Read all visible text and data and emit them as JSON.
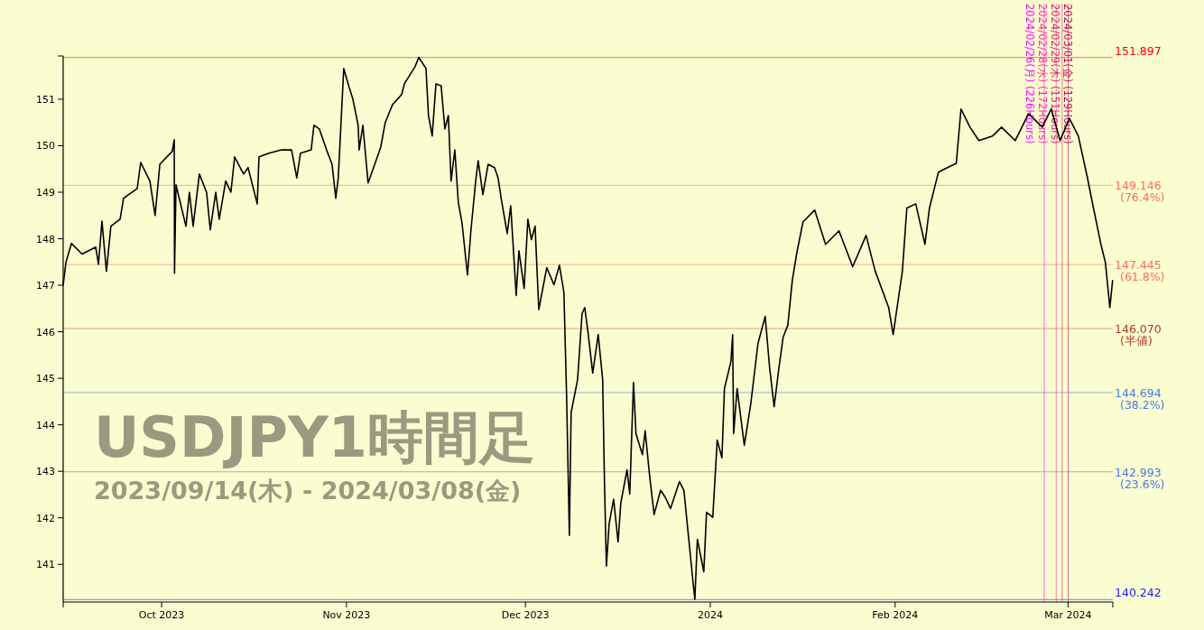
{
  "chart_data": {
    "type": "line",
    "title": "USDJPY1時間足",
    "subtitle": "2023/09/14(木) - 2024/03/08(金)",
    "xlim": [
      "2023-09-14T12:00",
      "2024-03-08T12:00"
    ],
    "xticks": [
      {
        "value": "2023-10-01",
        "label": "Oct 2023"
      },
      {
        "value": "2023-11-01",
        "label": "Nov 2023"
      },
      {
        "value": "2023-12-01",
        "label": "Dec 2023"
      },
      {
        "value": "2024-01-01",
        "label": "2024"
      },
      {
        "value": "2024-02-01",
        "label": "Feb 2024"
      },
      {
        "value": "2024-03-01",
        "label": "Mar 2024"
      }
    ],
    "ylim": [
      140.19,
      151.93
    ],
    "yticks": [
      141,
      142,
      143,
      144,
      145,
      146,
      147,
      148,
      149,
      150,
      151
    ],
    "series": [
      {
        "color": "#000000",
        "x": [
          "2023-09-14T12:00",
          "2023-09-14T23:00",
          "2023-09-15T21:00",
          "2023-09-17T16:00",
          "2023-09-19T23:00",
          "2023-09-20T10:00",
          "2023-09-21T00:00",
          "2023-09-21T18:00",
          "2023-09-22T12:00",
          "2023-09-24T01:00",
          "2023-09-24T15:00",
          "2023-09-26T22:00",
          "2023-09-27T12:00",
          "2023-09-29T01:00",
          "2023-09-29T22:00",
          "2023-09-30T17:00",
          "2023-10-02T19:00",
          "2023-10-03T03:00",
          "2023-10-03T04:00",
          "2023-10-03T10:00",
          "2023-10-05T02:00",
          "2023-10-05T16:00",
          "2023-10-06T07:00",
          "2023-10-07T08:00",
          "2023-10-08T13:00",
          "2023-10-09T04:00",
          "2023-10-10T02:00",
          "2023-10-10T16:00",
          "2023-10-11T18:00",
          "2023-10-12T15:00",
          "2023-10-13T06:00",
          "2023-10-14T18:00",
          "2023-10-15T12:00",
          "2023-10-17T01:00",
          "2023-10-17T08:00",
          "2023-10-19T00:00",
          "2023-10-21T03:00",
          "2023-10-22T19:00",
          "2023-10-23T16:00",
          "2023-10-24T07:00",
          "2023-10-26T02:00",
          "2023-10-26T13:00",
          "2023-10-27T11:00",
          "2023-10-28T16:00",
          "2023-10-29T14:00",
          "2023-10-30T05:00",
          "2023-10-30T15:00",
          "2023-10-31T13:00",
          "2023-11-01T11:00",
          "2023-11-02T01:00",
          "2023-11-02T23:00",
          "2023-11-03T03:00",
          "2023-11-03T18:00",
          "2023-11-04T15:00",
          "2023-11-05T13:00",
          "2023-11-06T18:00",
          "2023-11-07T12:00",
          "2023-11-08T17:00",
          "2023-11-10T06:00",
          "2023-11-10T17:00",
          "2023-11-12T12:00",
          "2023-11-13T03:00",
          "2023-11-14T08:00",
          "2023-11-14T18:00",
          "2023-11-15T09:00",
          "2023-11-16T00:00",
          "2023-11-16T21:00",
          "2023-11-17T12:00",
          "2023-11-18T02:00",
          "2023-11-18T13:00",
          "2023-11-19T04:00",
          "2023-11-19T18:00",
          "2023-11-20T09:00",
          "2023-11-21T07:00",
          "2023-11-21T21:00",
          "2023-11-22T16:00",
          "2023-11-23T02:00",
          "2023-11-23T21:00",
          "2023-11-24T18:00",
          "2023-11-25T20:00",
          "2023-11-26T10:00",
          "2023-11-27T01:00",
          "2023-11-27T23:00",
          "2023-11-28T13:00",
          "2023-11-29T11:00",
          "2023-11-29T22:00",
          "2023-11-30T19:00",
          "2023-12-01T10:00",
          "2023-12-02T00:00",
          "2023-12-02T15:00",
          "2023-12-03T06:00",
          "2023-12-04T14:00",
          "2023-12-05T19:00",
          "2023-12-06T17:00",
          "2023-12-07T11:00",
          "2023-12-07T22:00",
          "2023-12-08T09:00",
          "2023-12-08T16:00",
          "2023-12-09T18:00",
          "2023-12-10T12:00",
          "2023-12-10T23:00",
          "2023-12-11T13:00",
          "2023-12-12T07:00",
          "2023-12-13T05:00",
          "2023-12-13T23:00",
          "2023-12-14T06:00",
          "2023-12-14T14:00",
          "2023-12-15T01:00",
          "2023-12-15T19:00",
          "2023-12-16T13:00",
          "2023-12-17T00:00",
          "2023-12-18T01:00",
          "2023-12-18T12:00",
          "2023-12-19T03:00",
          "2023-12-19T13:00",
          "2023-12-20T15:00",
          "2023-12-21T02:00",
          "2023-12-21T20:00",
          "2023-12-22T14:00",
          "2023-12-23T16:00",
          "2023-12-24T10:00",
          "2023-12-25T08:00",
          "2023-12-26T20:00",
          "2023-12-27T14:00",
          "2023-12-28T08:00",
          "2023-12-29T02:00",
          "2023-12-29T10:00",
          "2023-12-29T20:00",
          "2023-12-30T22:00",
          "2023-12-31T09:00",
          "2024-01-01T10:00",
          "2024-01-02T04:00",
          "2024-01-02T23:00",
          "2024-01-03T09:00",
          "2024-01-04T11:00",
          "2024-01-04T18:00",
          "2024-01-04T22:00",
          "2024-01-05T12:00",
          "2024-01-06T17:00",
          "2024-01-07T19:00",
          "2024-01-09T00:00",
          "2024-01-10T05:00",
          "2024-01-10T23:00",
          "2024-01-11T17:00",
          "2024-01-12T11:00",
          "2024-01-13T05:00",
          "2024-01-14T00:00",
          "2024-01-14T18:00",
          "2024-01-15T12:00",
          "2024-01-16T13:00",
          "2024-01-18T12:00",
          "2024-01-20T08:00",
          "2024-01-22T14:00",
          "2024-01-24T21:00",
          "2024-01-27T03:00",
          "2024-01-28T16:00",
          "2024-01-30T22:00",
          "2024-01-31T16:00",
          "2024-02-02T05:00",
          "2024-02-02T23:00",
          "2024-02-04T11:00",
          "2024-02-06T00:00",
          "2024-02-06T18:00",
          "2024-02-08T06:00",
          "2024-02-09T18:00",
          "2024-02-11T06:00",
          "2024-02-12T01:00",
          "2024-02-13T13:00",
          "2024-02-15T01:00",
          "2024-02-17T08:00",
          "2024-02-18T20:00",
          "2024-02-21T03:00",
          "2024-02-23T09:00",
          "2024-02-25T16:00",
          "2024-02-27T04:00",
          "2024-02-28T16:00",
          "2024-03-01T05:00",
          "2024-03-02T17:00",
          "2024-03-04T05:00",
          "2024-03-05T06:00",
          "2024-03-06T12:00",
          "2024-03-07T06:00",
          "2024-03-08T00:00",
          "2024-03-08T11:00"
        ],
        "values": [
          147.01,
          147.49,
          147.9,
          147.67,
          147.82,
          147.45,
          148.38,
          147.3,
          148.27,
          148.42,
          148.87,
          149.08,
          149.64,
          149.24,
          148.5,
          149.6,
          149.88,
          150.13,
          147.26,
          149.16,
          148.27,
          149.0,
          148.27,
          149.39,
          149.0,
          148.19,
          149.0,
          148.42,
          149.24,
          149.0,
          149.76,
          149.39,
          149.53,
          148.75,
          149.76,
          149.84,
          149.91,
          149.91,
          149.31,
          149.84,
          149.91,
          150.44,
          150.36,
          149.91,
          149.6,
          148.87,
          149.31,
          151.66,
          151.25,
          151.02,
          150.44,
          149.91,
          150.44,
          149.2,
          149.53,
          149.97,
          150.5,
          150.88,
          151.1,
          151.33,
          151.7,
          151.9,
          151.66,
          150.65,
          150.21,
          151.33,
          151.29,
          150.36,
          150.65,
          149.24,
          149.91,
          148.79,
          148.34,
          147.22,
          148.19,
          149.24,
          149.68,
          148.95,
          149.6,
          149.53,
          149.31,
          148.79,
          148.11,
          148.71,
          146.78,
          147.74,
          146.93,
          148.42,
          147.98,
          148.27,
          146.48,
          147.38,
          147.01,
          147.43,
          146.85,
          144.59,
          141.62,
          144.26,
          144.97,
          146.39,
          146.52,
          145.94,
          145.11,
          145.94,
          144.97,
          142.84,
          140.96,
          141.87,
          142.4,
          141.48,
          142.32,
          143.03,
          142.51,
          144.91,
          143.81,
          143.36,
          143.87,
          142.9,
          142.07,
          142.59,
          142.45,
          142.2,
          142.78,
          142.59,
          141.62,
          140.65,
          140.25,
          141.54,
          140.84,
          142.12,
          142.01,
          143.67,
          143.29,
          144.78,
          145.36,
          145.94,
          143.81,
          144.78,
          143.56,
          144.45,
          145.75,
          146.33,
          145.22,
          144.39,
          145.17,
          145.88,
          146.14,
          147.1,
          147.69,
          148.36,
          148.62,
          147.88,
          148.17,
          147.4,
          148.07,
          147.3,
          146.52,
          145.94,
          147.3,
          148.66,
          148.75,
          147.88,
          148.66,
          149.43,
          149.53,
          149.62,
          150.79,
          150.4,
          150.11,
          150.21,
          150.4,
          150.11,
          150.69,
          150.4,
          150.79,
          150.11,
          150.59,
          150.21,
          149.33,
          148.66,
          147.88,
          147.49,
          146.52,
          147.1
        ]
      }
    ],
    "ref_lines": [
      {
        "axis": "y",
        "value": 151.897,
        "label": "151.897",
        "color": "#ff0000"
      },
      {
        "axis": "y",
        "value": 149.146,
        "label": "149.146 (76.4%)",
        "color": "#ff6a5a"
      },
      {
        "axis": "y",
        "value": 147.445,
        "label": "147.445 (61.8%)",
        "color": "#ff6a5a"
      },
      {
        "axis": "y",
        "value": 146.07,
        "label": "146.070 (半値)",
        "color": "#b03a2e"
      },
      {
        "axis": "y",
        "value": 144.694,
        "label": "144.694 (38.2%)",
        "color": "#4a78e6"
      },
      {
        "axis": "y",
        "value": 142.993,
        "label": "142.993 (23.6%)",
        "color": "#4a78e6"
      },
      {
        "axis": "y",
        "value": 140.242,
        "label": "140.242",
        "color": "#1a1aff"
      },
      {
        "axis": "x",
        "value": "2024-02-26",
        "label": "2024/02/26(月) (226Hours)",
        "color": "#ff00ff"
      },
      {
        "axis": "x",
        "value": "2024-02-28",
        "label": "2024/02/28(水) (172Hours)",
        "color": "#ff2fa0"
      },
      {
        "axis": "x",
        "value": "2024-02-29",
        "label": "2024/02/29(木) (151Hours)",
        "color": "#e0207a"
      },
      {
        "axis": "x",
        "value": "2024-03-01",
        "label": "2024/03/01(金) (129Hours)",
        "color": "#c01060"
      }
    ]
  }
}
